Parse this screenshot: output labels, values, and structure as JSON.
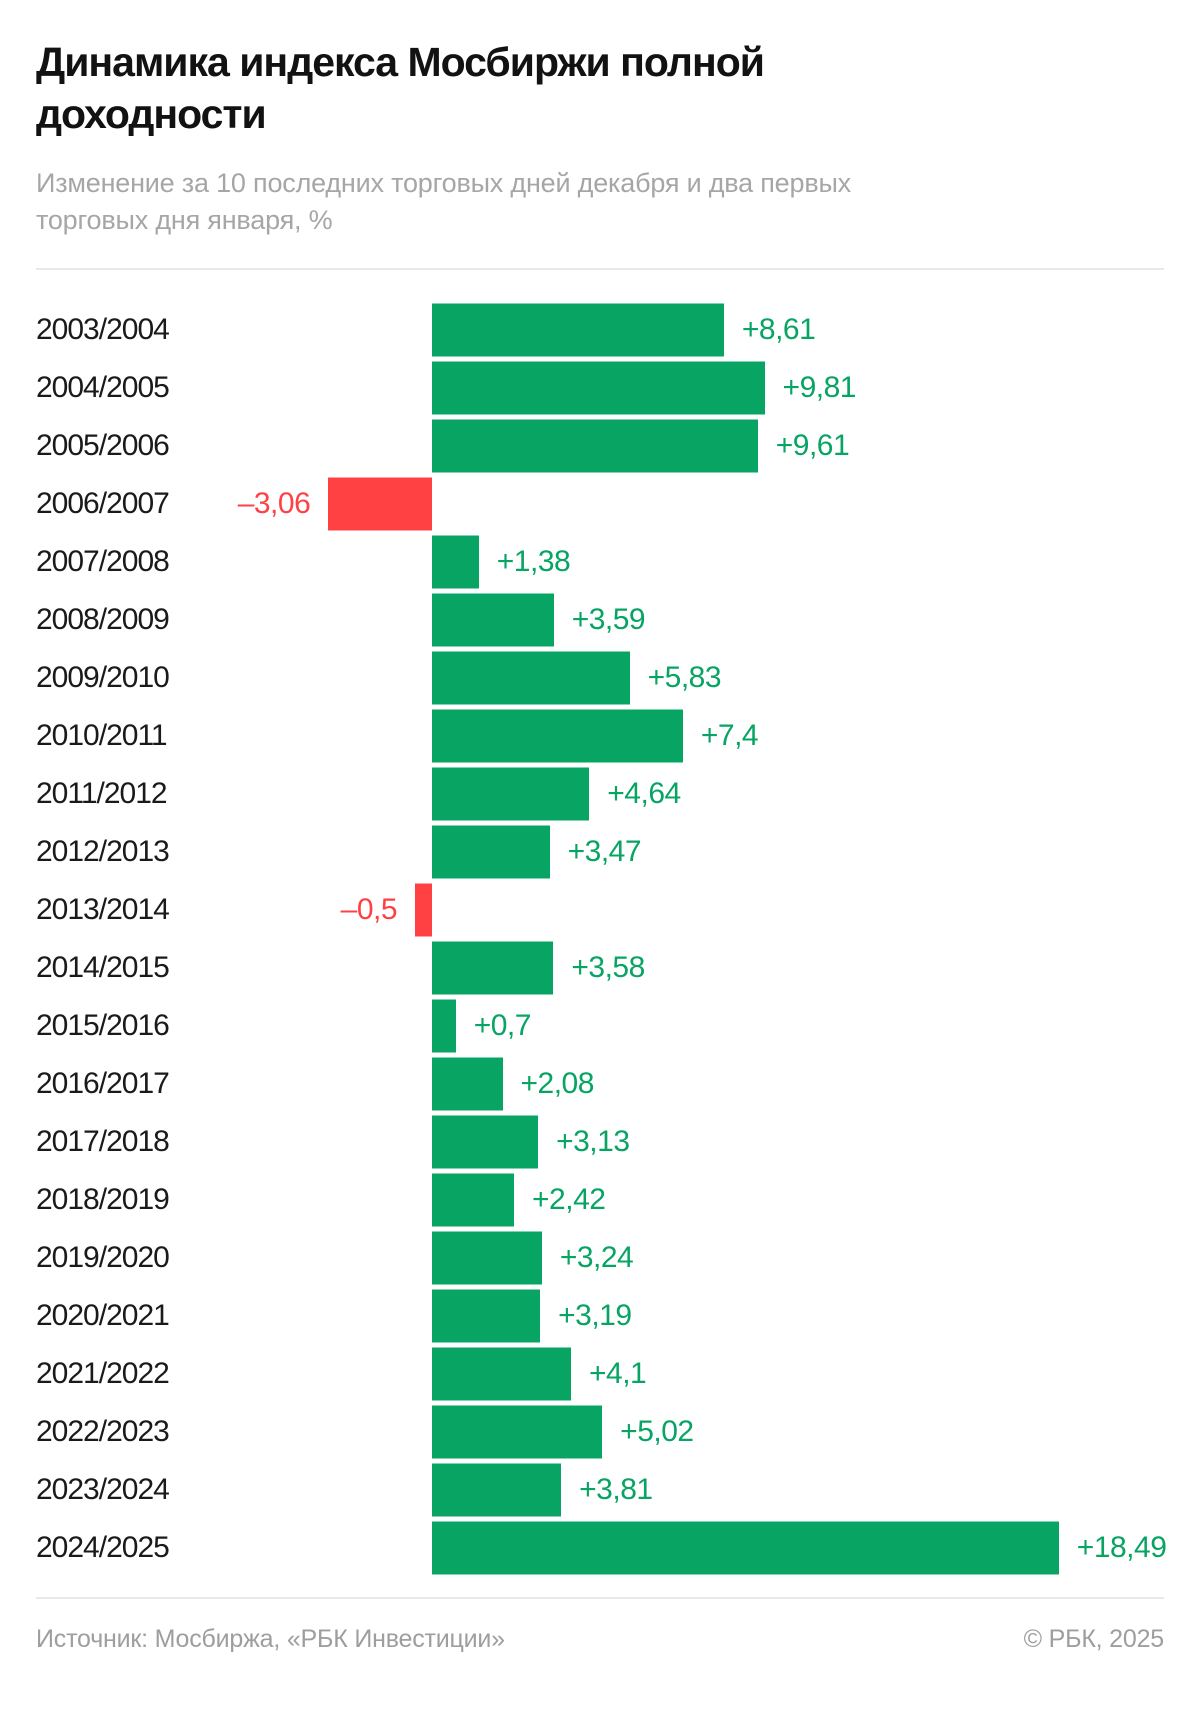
{
  "header": {
    "title": "Динамика индекса Мосбиржи полной доходности",
    "subtitle": "Изменение за 10 последних торговых дней декабря и два первых торговых дня января, %"
  },
  "chart_data": {
    "type": "bar",
    "orientation": "horizontal",
    "title": "Динамика индекса Мосбиржи полной доходности",
    "xlabel": "",
    "ylabel": "",
    "unit": "%",
    "xlim": [
      -3.5,
      19
    ],
    "grid": false,
    "categories": [
      "2003/2004",
      "2004/2005",
      "2005/2006",
      "2006/2007",
      "2007/2008",
      "2008/2009",
      "2009/2010",
      "2010/2011",
      "2011/2012",
      "2012/2013",
      "2013/2014",
      "2014/2015",
      "2015/2016",
      "2016/2017",
      "2017/2018",
      "2018/2019",
      "2019/2020",
      "2020/2021",
      "2021/2022",
      "2022/2023",
      "2023/2024",
      "2024/2025"
    ],
    "values": [
      8.61,
      9.81,
      9.61,
      -3.06,
      1.38,
      3.59,
      5.83,
      7.4,
      4.64,
      3.47,
      -0.5,
      3.58,
      0.7,
      2.08,
      3.13,
      2.42,
      3.24,
      3.19,
      4.1,
      5.02,
      3.81,
      18.49
    ],
    "value_labels": [
      "+8,61",
      "+9,81",
      "+9,61",
      "–3,06",
      "+1,38",
      "+3,59",
      "+5,83",
      "+7,4",
      "+4,64",
      "+3,47",
      "–0,5",
      "+3,58",
      "+0,7",
      "+2,08",
      "+3,13",
      "+2,42",
      "+3,24",
      "+3,19",
      "+4,1",
      "+5,02",
      "+3,81",
      "+18,49"
    ],
    "colors": {
      "positive": "#07a463",
      "negative": "#ff4144",
      "positive_text": "#07a463",
      "negative_text": "#ff4144"
    }
  },
  "footer": {
    "source": "Источник: Мосбиржа, «РБК Инвестиции»",
    "copyright": "© РБК, 2025"
  }
}
